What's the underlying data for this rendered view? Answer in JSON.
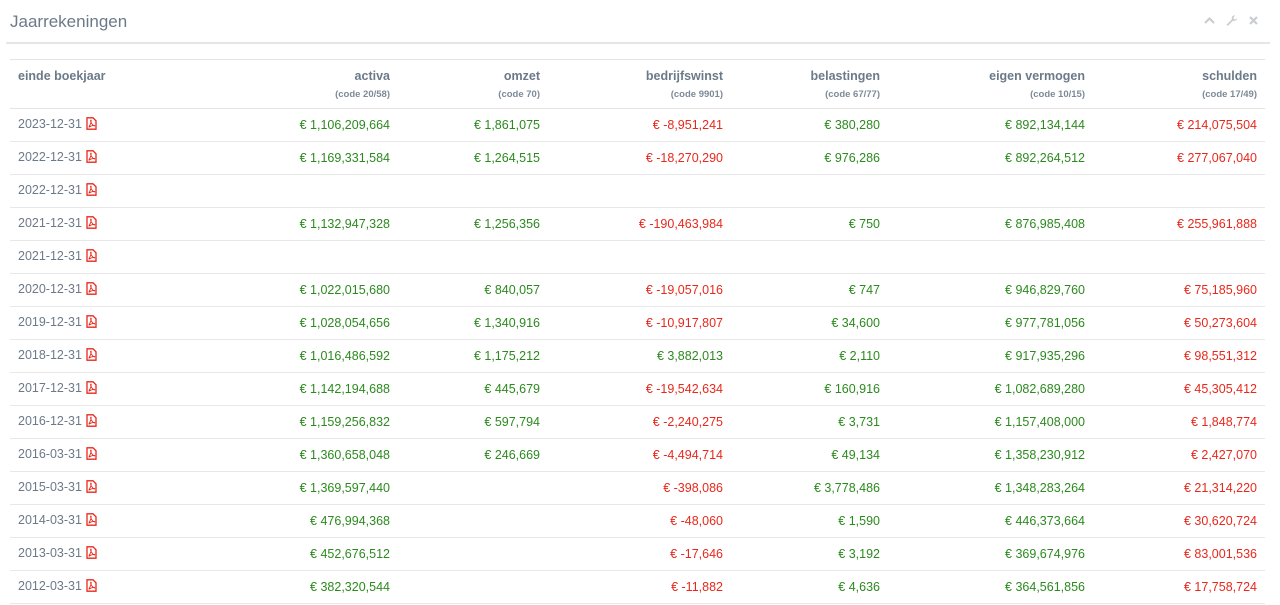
{
  "panel": {
    "title": "Jaarrekeningen",
    "tools": [
      "chevron-up-icon",
      "wrench-icon",
      "close-icon"
    ]
  },
  "colors": {
    "positive": "#2b8a1e",
    "negative": "#e8281c",
    "header": "#6b7a89",
    "pdf": "#e8281c"
  },
  "columns": [
    {
      "label": "einde boekjaar",
      "sub": ""
    },
    {
      "label": "activa",
      "sub": "(code 20/58)"
    },
    {
      "label": "omzet",
      "sub": "(code 70)"
    },
    {
      "label": "bedrijfswinst",
      "sub": "(code 9901)"
    },
    {
      "label": "belastingen",
      "sub": "(code 67/77)"
    },
    {
      "label": "eigen vermogen",
      "sub": "(code 10/15)"
    },
    {
      "label": "schulden",
      "sub": "(code 17/49)"
    }
  ],
  "rows": [
    {
      "date": "2023-12-31",
      "activa": "€ 1,106,209,664",
      "omzet": "€ 1,861,075",
      "bedrijfswinst": "€ -8,951,241",
      "belastingen": "€ 380,280",
      "eigen_vermogen": "€ 892,134,144",
      "schulden": "€ 214,075,504"
    },
    {
      "date": "2022-12-31",
      "activa": "€ 1,169,331,584",
      "omzet": "€ 1,264,515",
      "bedrijfswinst": "€ -18,270,290",
      "belastingen": "€ 976,286",
      "eigen_vermogen": "€ 892,264,512",
      "schulden": "€ 277,067,040"
    },
    {
      "date": "2022-12-31",
      "activa": "",
      "omzet": "",
      "bedrijfswinst": "",
      "belastingen": "",
      "eigen_vermogen": "",
      "schulden": ""
    },
    {
      "date": "2021-12-31",
      "activa": "€ 1,132,947,328",
      "omzet": "€ 1,256,356",
      "bedrijfswinst": "€ -190,463,984",
      "belastingen": "€ 750",
      "eigen_vermogen": "€ 876,985,408",
      "schulden": "€ 255,961,888"
    },
    {
      "date": "2021-12-31",
      "activa": "",
      "omzet": "",
      "bedrijfswinst": "",
      "belastingen": "",
      "eigen_vermogen": "",
      "schulden": ""
    },
    {
      "date": "2020-12-31",
      "activa": "€ 1,022,015,680",
      "omzet": "€ 840,057",
      "bedrijfswinst": "€ -19,057,016",
      "belastingen": "€ 747",
      "eigen_vermogen": "€ 946,829,760",
      "schulden": "€ 75,185,960"
    },
    {
      "date": "2019-12-31",
      "activa": "€ 1,028,054,656",
      "omzet": "€ 1,340,916",
      "bedrijfswinst": "€ -10,917,807",
      "belastingen": "€ 34,600",
      "eigen_vermogen": "€ 977,781,056",
      "schulden": "€ 50,273,604"
    },
    {
      "date": "2018-12-31",
      "activa": "€ 1,016,486,592",
      "omzet": "€ 1,175,212",
      "bedrijfswinst": "€ 3,882,013",
      "belastingen": "€ 2,110",
      "eigen_vermogen": "€ 917,935,296",
      "schulden": "€ 98,551,312"
    },
    {
      "date": "2017-12-31",
      "activa": "€ 1,142,194,688",
      "omzet": "€ 445,679",
      "bedrijfswinst": "€ -19,542,634",
      "belastingen": "€ 160,916",
      "eigen_vermogen": "€ 1,082,689,280",
      "schulden": "€ 45,305,412"
    },
    {
      "date": "2016-12-31",
      "activa": "€ 1,159,256,832",
      "omzet": "€ 597,794",
      "bedrijfswinst": "€ -2,240,275",
      "belastingen": "€ 3,731",
      "eigen_vermogen": "€ 1,157,408,000",
      "schulden": "€ 1,848,774"
    },
    {
      "date": "2016-03-31",
      "activa": "€ 1,360,658,048",
      "omzet": "€ 246,669",
      "bedrijfswinst": "€ -4,494,714",
      "belastingen": "€ 49,134",
      "eigen_vermogen": "€ 1,358,230,912",
      "schulden": "€ 2,427,070"
    },
    {
      "date": "2015-03-31",
      "activa": "€ 1,369,597,440",
      "omzet": "",
      "bedrijfswinst": "€ -398,086",
      "belastingen": "€ 3,778,486",
      "eigen_vermogen": "€ 1,348,283,264",
      "schulden": "€ 21,314,220"
    },
    {
      "date": "2014-03-31",
      "activa": "€ 476,994,368",
      "omzet": "",
      "bedrijfswinst": "€ -48,060",
      "belastingen": "€ 1,590",
      "eigen_vermogen": "€ 446,373,664",
      "schulden": "€ 30,620,724"
    },
    {
      "date": "2013-03-31",
      "activa": "€ 452,676,512",
      "omzet": "",
      "bedrijfswinst": "€ -17,646",
      "belastingen": "€ 3,192",
      "eigen_vermogen": "€ 369,674,976",
      "schulden": "€ 83,001,536"
    },
    {
      "date": "2012-03-31",
      "activa": "€ 382,320,544",
      "omzet": "",
      "bedrijfswinst": "€ -11,882",
      "belastingen": "€ 4,636",
      "eigen_vermogen": "€ 364,561,856",
      "schulden": "€ 17,758,724"
    }
  ]
}
